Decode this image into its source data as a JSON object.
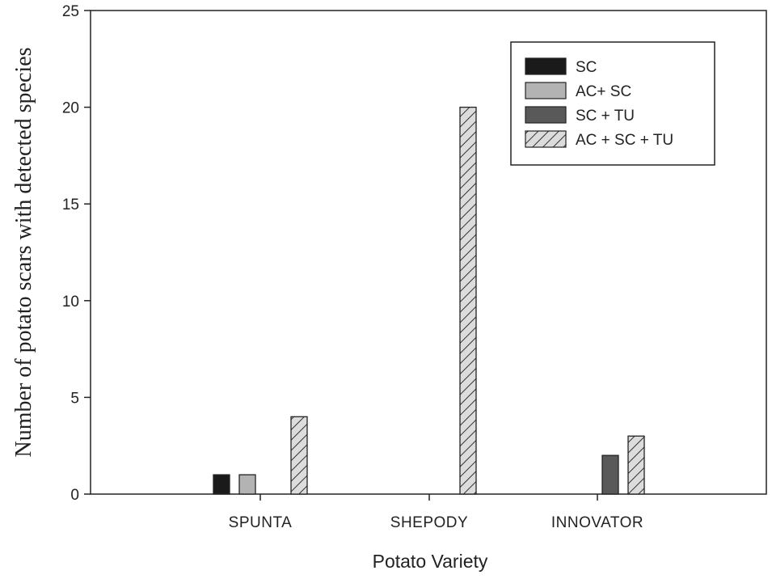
{
  "chart_data": {
    "type": "bar",
    "categories": [
      "SPUNTA",
      "SHEPODY",
      "INNOVATOR"
    ],
    "series": [
      {
        "name": "SC",
        "values": [
          1,
          0,
          0
        ],
        "color": "#1a1a1a",
        "pattern": "solid"
      },
      {
        "name": "AC+ SC",
        "values": [
          1,
          0,
          0
        ],
        "color": "#b3b3b3",
        "pattern": "solid"
      },
      {
        "name": "SC + TU",
        "values": [
          0,
          0,
          2
        ],
        "color": "#595959",
        "pattern": "solid"
      },
      {
        "name": "AC + SC + TU",
        "values": [
          4,
          20,
          3
        ],
        "color": "#d9d9d9",
        "pattern": "hatch"
      }
    ],
    "xlabel": "Potato Variety",
    "ylabel": "Number of potato scars with detected species",
    "ylim": [
      0,
      25
    ],
    "yticks": [
      "0",
      "5",
      "10",
      "15",
      "20",
      "25"
    ],
    "legend_position": "top-right",
    "grid": false
  }
}
